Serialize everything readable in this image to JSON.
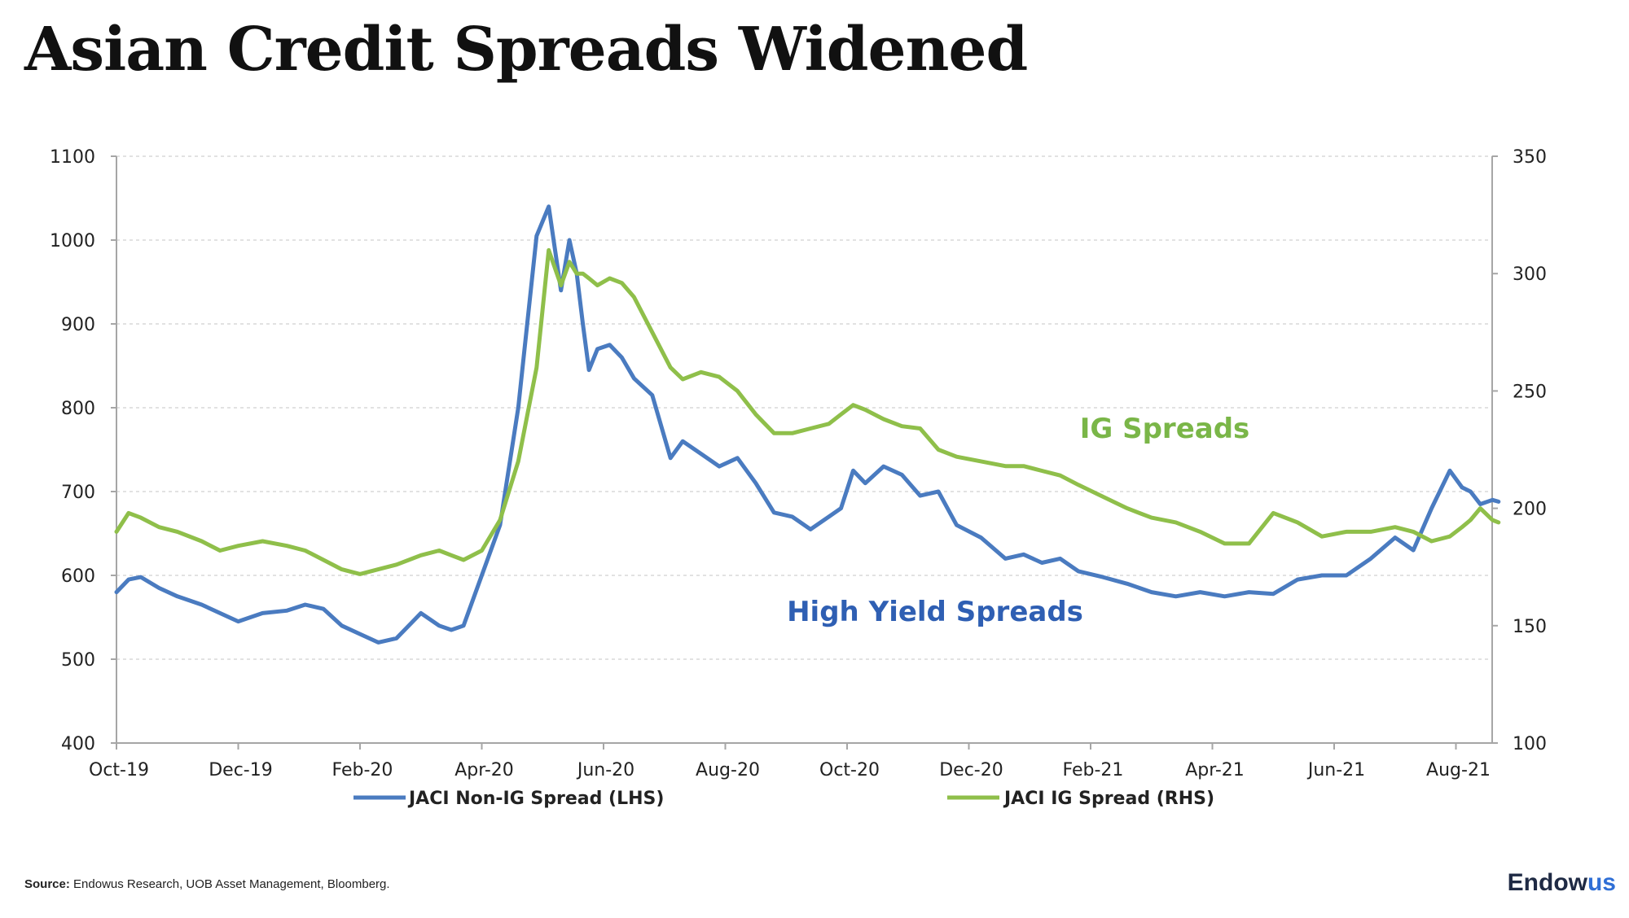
{
  "slide": {
    "title": "Asian Credit Spreads Widened",
    "source_label": "Source:",
    "source_text": "Endowus Research, UOB Asset Management, Bloomberg.",
    "logo_main": "Endow",
    "logo_accent": "us"
  },
  "chart_data": {
    "type": "line",
    "title": "",
    "x_tick_labels": [
      "Oct-19",
      "Dec-19",
      "Feb-20",
      "Apr-20",
      "Jun-20",
      "Aug-20",
      "Oct-20",
      "Dec-20",
      "Feb-21",
      "Apr-21",
      "Jun-21",
      "Aug-21"
    ],
    "y_left": {
      "min": 400,
      "max": 1100,
      "ticks": [
        400,
        500,
        600,
        700,
        800,
        900,
        1000,
        1100
      ]
    },
    "y_right": {
      "min": 100,
      "max": 350,
      "ticks": [
        100,
        150,
        200,
        250,
        300,
        350
      ]
    },
    "grid": "horizontal dashed",
    "legend_position": "bottom",
    "annotations": [
      {
        "text": "IG Spreads",
        "color": "#7ab648"
      },
      {
        "text": "High Yield Spreads",
        "color": "#2f5fb3"
      }
    ],
    "series": [
      {
        "name": "JACI Non-IG Spread (LHS)",
        "axis": "left",
        "color": "#4a7bc0",
        "x": [
          0,
          0.1,
          0.2,
          0.35,
          0.5,
          0.7,
          0.85,
          1.0,
          1.2,
          1.4,
          1.55,
          1.7,
          1.85,
          2.0,
          2.15,
          2.3,
          2.5,
          2.65,
          2.75,
          2.85,
          3.0,
          3.15,
          3.3,
          3.45,
          3.55,
          3.65,
          3.72,
          3.78,
          3.83,
          3.88,
          3.95,
          4.05,
          4.15,
          4.25,
          4.4,
          4.55,
          4.65,
          4.8,
          4.95,
          5.1,
          5.25,
          5.4,
          5.55,
          5.7,
          5.85,
          5.95,
          6.05,
          6.15,
          6.3,
          6.45,
          6.6,
          6.75,
          6.9,
          7.1,
          7.3,
          7.45,
          7.6,
          7.75,
          7.9,
          8.1,
          8.3,
          8.5,
          8.7,
          8.9,
          9.1,
          9.3,
          9.5,
          9.7,
          9.9,
          10.1,
          10.3,
          10.5,
          10.65,
          10.8,
          10.95,
          11.05,
          11.12,
          11.2,
          11.3,
          11.35
        ],
        "y": [
          580,
          595,
          598,
          585,
          575,
          565,
          555,
          545,
          555,
          558,
          565,
          560,
          540,
          530,
          520,
          525,
          555,
          540,
          535,
          540,
          600,
          660,
          800,
          1005,
          1040,
          940,
          1000,
          960,
          900,
          845,
          870,
          875,
          860,
          835,
          815,
          740,
          760,
          745,
          730,
          740,
          710,
          675,
          670,
          655,
          670,
          680,
          725,
          710,
          730,
          720,
          695,
          700,
          660,
          645,
          620,
          625,
          615,
          620,
          605,
          598,
          590,
          580,
          575,
          580,
          575,
          580,
          578,
          595,
          600,
          600,
          620,
          645,
          630,
          680,
          725,
          705,
          700,
          685,
          690,
          688
        ]
      },
      {
        "name": "JACI IG Spread (RHS)",
        "axis": "left-scaled-right",
        "color": "#8fbf4a",
        "x": [
          0,
          0.1,
          0.2,
          0.35,
          0.5,
          0.7,
          0.85,
          1.0,
          1.2,
          1.4,
          1.55,
          1.7,
          1.85,
          2.0,
          2.15,
          2.3,
          2.5,
          2.65,
          2.75,
          2.85,
          3.0,
          3.15,
          3.3,
          3.45,
          3.55,
          3.65,
          3.72,
          3.78,
          3.83,
          3.88,
          3.95,
          4.05,
          4.15,
          4.25,
          4.4,
          4.55,
          4.65,
          4.8,
          4.95,
          5.1,
          5.25,
          5.4,
          5.55,
          5.7,
          5.85,
          5.95,
          6.05,
          6.15,
          6.3,
          6.45,
          6.6,
          6.75,
          6.9,
          7.1,
          7.3,
          7.45,
          7.6,
          7.75,
          7.9,
          8.1,
          8.3,
          8.5,
          8.7,
          8.9,
          9.1,
          9.3,
          9.5,
          9.7,
          9.9,
          10.1,
          10.3,
          10.5,
          10.65,
          10.8,
          10.95,
          11.05,
          11.12,
          11.2,
          11.3,
          11.35
        ],
        "y": [
          190,
          198,
          196,
          192,
          190,
          186,
          182,
          184,
          186,
          184,
          182,
          178,
          174,
          172,
          174,
          176,
          180,
          182,
          180,
          178,
          182,
          195,
          220,
          260,
          310,
          295,
          305,
          300,
          300,
          298,
          295,
          298,
          296,
          290,
          275,
          260,
          255,
          258,
          256,
          250,
          240,
          232,
          232,
          234,
          236,
          240,
          244,
          242,
          238,
          235,
          234,
          225,
          222,
          220,
          218,
          218,
          216,
          214,
          210,
          205,
          200,
          196,
          194,
          190,
          185,
          185,
          198,
          194,
          188,
          190,
          190,
          192,
          190,
          186,
          188,
          192,
          195,
          200,
          195,
          194
        ]
      }
    ]
  }
}
